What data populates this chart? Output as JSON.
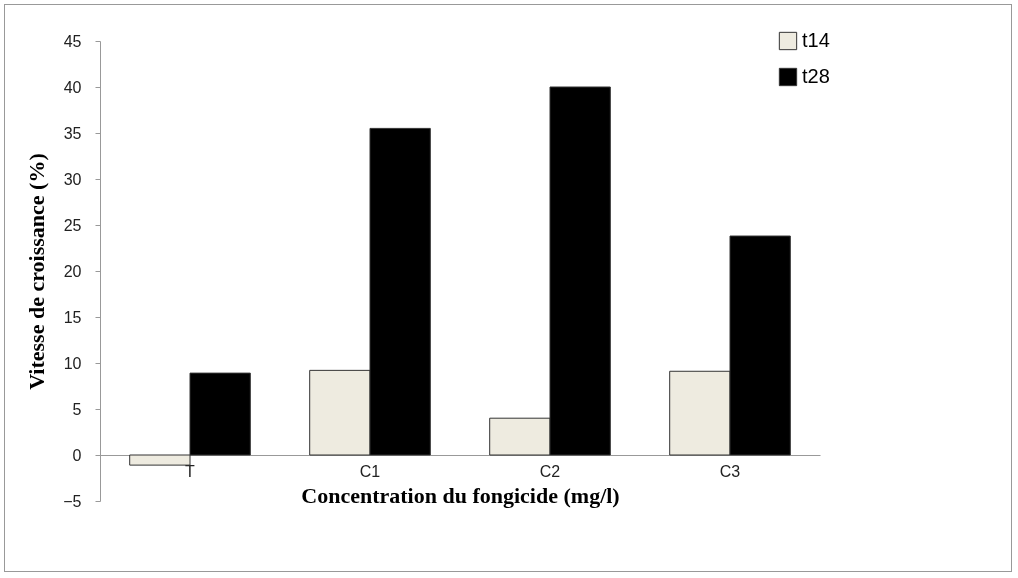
{
  "chart_data": {
    "type": "bar",
    "xlabel": "Concentration du fongicide (mg/l)",
    "ylabel": "Vitesse de croissance (%)",
    "categories": [
      "T",
      "C1",
      "C2",
      "C3"
    ],
    "series": [
      {
        "name": "t14",
        "color": "#eeebe0",
        "values": [
          -1.1,
          9.2,
          4.0,
          9.1
        ]
      },
      {
        "name": "t28",
        "color": "#000000",
        "values": [
          8.9,
          35.5,
          40.0,
          23.8
        ]
      }
    ],
    "ylim": [
      -5,
      45
    ],
    "yticks": [
      -5,
      0,
      5,
      10,
      15,
      20,
      25,
      30,
      35,
      40,
      45
    ],
    "grid": false,
    "legend": "top right"
  }
}
